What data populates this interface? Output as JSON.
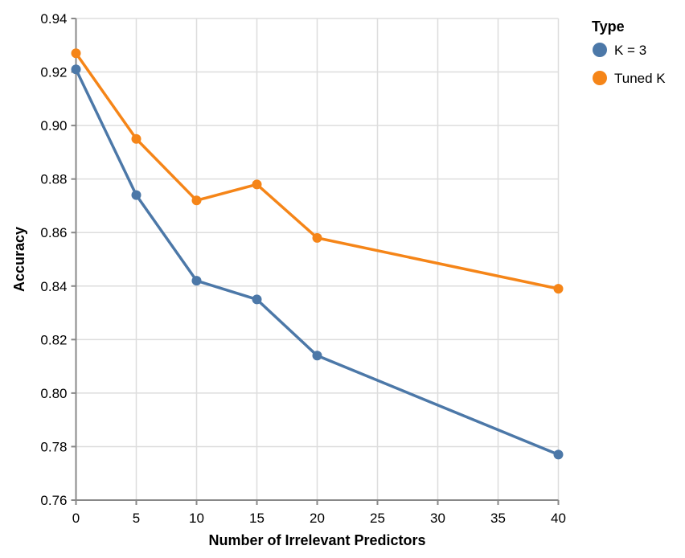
{
  "figure": {
    "background": "#ffffff"
  },
  "chart_data": {
    "type": "line",
    "x": [
      0,
      5,
      10,
      15,
      20,
      40
    ],
    "series": [
      {
        "name": "K = 3",
        "color": "#4C78A8",
        "values": [
          0.921,
          0.874,
          0.842,
          0.835,
          0.814,
          0.777
        ]
      },
      {
        "name": "Tuned K",
        "color": "#F58518",
        "values": [
          0.927,
          0.895,
          0.872,
          0.878,
          0.858,
          0.839
        ]
      }
    ],
    "title": "",
    "xlabel": "Number of Irrelevant Predictors",
    "ylabel": "Accuracy",
    "xlim": [
      0,
      40
    ],
    "ylim": [
      0.76,
      0.94
    ],
    "xticks": [
      0,
      5,
      10,
      15,
      20,
      25,
      30,
      35,
      40
    ],
    "yticks": [
      0.76,
      0.78,
      0.8,
      0.82,
      0.84,
      0.86,
      0.88,
      0.9,
      0.92,
      0.94
    ],
    "grid": true,
    "legend": {
      "title": "Type",
      "position": "top-right-outside"
    }
  }
}
